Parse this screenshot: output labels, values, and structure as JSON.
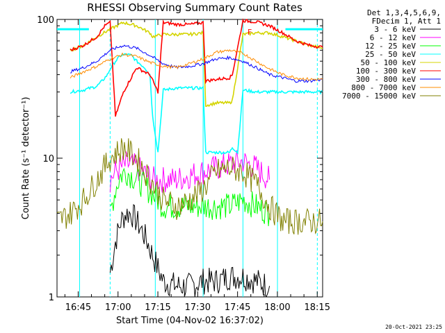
{
  "chart_data": {
    "type": "line",
    "title": "RHESSI Observing Summary Count Rates",
    "xlabel": "Start Time (04-Nov-02 16:37:02)",
    "ylabel": "Count Rate (s⁻¹ detector⁻¹)",
    "x_unit": "minutes since 16:37:02",
    "xlim": [
      0,
      100
    ],
    "ylim": [
      1,
      100
    ],
    "yscale": "log",
    "x_ticks": [
      "16:45",
      "17:00",
      "17:15",
      "17:30",
      "17:45",
      "18:00",
      "18:15"
    ],
    "x_tick_minutes": [
      7.97,
      22.97,
      37.97,
      52.97,
      67.97,
      82.97,
      97.97
    ],
    "y_tick_labels": [
      "1",
      "10",
      "100"
    ],
    "legend_header": [
      "Det 1,3,4,5,6,9,",
      "FDecim 1, Att 1"
    ],
    "series": [
      {
        "name": "3 - 6 keV",
        "color": "#000000",
        "x": [
          20,
          22,
          24,
          26,
          28,
          30,
          32,
          34,
          36,
          38,
          40,
          45,
          50,
          55,
          60,
          65,
          70,
          75,
          80
        ],
        "y": [
          1.5,
          2.5,
          3.5,
          4.0,
          4.0,
          3.5,
          3.0,
          2.5,
          2.0,
          1.6,
          1.3,
          1.2,
          1.2,
          1.3,
          1.3,
          1.4,
          1.4,
          1.3,
          1.2
        ]
      },
      {
        "name": "6 - 12 keV",
        "color": "#ff00ff",
        "x": [
          20,
          22,
          24,
          26,
          28,
          30,
          32,
          34,
          36,
          38,
          40,
          45,
          50,
          55,
          60,
          65,
          70,
          75,
          80
        ],
        "y": [
          7.0,
          8.0,
          8.5,
          9.0,
          9.0,
          8.5,
          8.0,
          7.5,
          7.0,
          7.0,
          7.0,
          7.0,
          7.5,
          8.0,
          8.5,
          9.0,
          9.5,
          8.5,
          7.0
        ]
      },
      {
        "name": "12 - 25 keV",
        "color": "#00ff00",
        "x": [
          20,
          22,
          24,
          26,
          28,
          30,
          32,
          34,
          36,
          38,
          40,
          45,
          50,
          55,
          60,
          65,
          70,
          75,
          80
        ],
        "y": [
          4.0,
          6.0,
          7.5,
          8.0,
          7.5,
          7.0,
          6.5,
          6.0,
          5.5,
          5.0,
          4.5,
          4.5,
          4.5,
          4.5,
          4.5,
          4.5,
          5.0,
          4.5,
          4.0
        ]
      },
      {
        "name": "25 - 50 keV",
        "color": "#00ffff",
        "x": [
          5,
          10,
          15,
          17,
          19,
          20,
          22,
          24,
          26,
          28,
          30,
          33,
          35,
          36,
          38,
          40,
          45,
          50,
          55,
          56,
          60,
          65,
          66,
          68,
          70,
          75,
          80,
          85,
          90,
          95,
          100
        ],
        "y": [
          30,
          31,
          33,
          36,
          40,
          44,
          50,
          55,
          56,
          55,
          50,
          45,
          40,
          20,
          11,
          31,
          32,
          32,
          32,
          11,
          11,
          11,
          12,
          11,
          31,
          30,
          30,
          30,
          30,
          30,
          30
        ]
      },
      {
        "name": "50 - 100 keV",
        "color": "#d4d400",
        "x": [
          5,
          10,
          15,
          20,
          25,
          30,
          35,
          36,
          40,
          45,
          50,
          55,
          56,
          60,
          65,
          66,
          70,
          75,
          80,
          85,
          90,
          95,
          100
        ],
        "y": [
          60,
          65,
          75,
          85,
          95,
          90,
          80,
          75,
          78,
          78,
          78,
          80,
          24,
          25,
          25,
          26,
          78,
          80,
          80,
          75,
          70,
          65,
          62
        ]
      },
      {
        "name": "100 - 300 keV",
        "color": "#ff0000",
        "x": [
          5,
          10,
          15,
          18,
          20,
          22,
          25,
          30,
          35,
          38,
          40,
          45,
          50,
          55,
          56,
          60,
          65,
          66,
          70,
          75,
          80,
          85,
          90,
          95,
          100
        ],
        "y": [
          60,
          65,
          75,
          90,
          95,
          20,
          30,
          45,
          40,
          30,
          95,
          92,
          92,
          95,
          36,
          37,
          38,
          40,
          98,
          96,
          90,
          80,
          70,
          65,
          63
        ]
      },
      {
        "name": "300 - 800 keV",
        "color": "#0000ff",
        "x": [
          5,
          10,
          15,
          20,
          25,
          30,
          35,
          40,
          45,
          50,
          55,
          60,
          65,
          70,
          75,
          80,
          85,
          90,
          95,
          100
        ],
        "y": [
          42,
          45,
          50,
          60,
          65,
          62,
          55,
          48,
          45,
          46,
          48,
          52,
          53,
          50,
          45,
          40,
          38,
          36,
          36,
          37
        ]
      },
      {
        "name": "800 - 7000 keV",
        "color": "#ff8c00",
        "x": [
          5,
          10,
          15,
          20,
          25,
          30,
          35,
          40,
          45,
          50,
          55,
          60,
          65,
          70,
          75,
          80,
          85,
          90,
          95,
          100
        ],
        "y": [
          38,
          42,
          46,
          52,
          56,
          54,
          49,
          46,
          45,
          48,
          52,
          58,
          60,
          57,
          50,
          44,
          40,
          38,
          37,
          37
        ]
      },
      {
        "name": "7000 - 15000 keV",
        "color": "#808000",
        "x": [
          0,
          5,
          10,
          15,
          20,
          25,
          30,
          35,
          40,
          45,
          50,
          55,
          60,
          65,
          70,
          75,
          80,
          85,
          90,
          95,
          100
        ],
        "y": [
          3.5,
          4.0,
          5.0,
          7.0,
          10.0,
          12.0,
          10.0,
          7.0,
          5.0,
          4.5,
          5.0,
          6.0,
          8.0,
          8.5,
          8.0,
          6.5,
          4.5,
          3.5,
          3.5,
          3.5,
          3.5
        ]
      }
    ],
    "flag_text": "F",
    "timestamp": "20-Oct-2021 23:25"
  }
}
